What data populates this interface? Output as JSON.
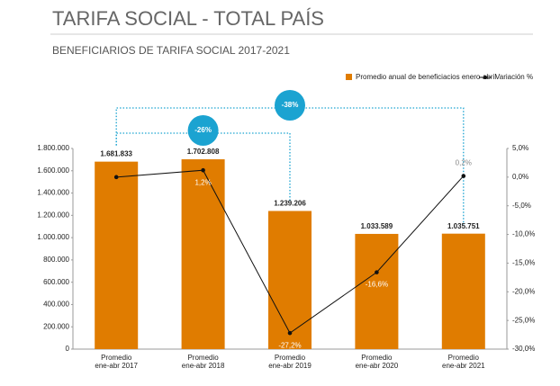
{
  "chart_data": {
    "type": "bar",
    "title": "TARIFA SOCIAL - TOTAL PAÍS",
    "subtitle": "BENEFICIARIOS DE TARIFA SOCIAL 2017-2021",
    "categories": [
      "Promedio\nene-abr 2017",
      "Promedio\nene-abr 2018",
      "Promedio\nene-abr 2019",
      "Promedio\nene-abr 2020",
      "Promedio\nene-abr 2021"
    ],
    "series": [
      {
        "name": "Promedio anual de beneficiacios enero-abril",
        "color": "#e07c00",
        "type": "bar",
        "values": [
          1681833,
          1702808,
          1239206,
          1033589,
          1035751
        ],
        "value_labels": [
          "1.681.833",
          "1.702.808",
          "1.239.206",
          "1.033.589",
          "1.035.751"
        ]
      },
      {
        "name": "Variación %",
        "color": "#111111",
        "type": "line",
        "axis": "y2",
        "values": [
          0.0,
          1.2,
          -27.2,
          -16.6,
          0.2
        ],
        "value_labels": [
          null,
          "1,2%",
          "-27,2%",
          "-16,6%",
          "0,2%"
        ]
      }
    ],
    "ylim": [
      0,
      1800000
    ],
    "yticks": [
      0,
      {
        "value": 200000,
        "label": "200.000"
      },
      {
        "value": 400000,
        "label": "400.000"
      },
      {
        "value": 600000,
        "label": "600.000"
      },
      {
        "value": 800000,
        "label": "800.000"
      },
      {
        "value": 1000000,
        "label": "1.000.000"
      },
      {
        "value": 1200000,
        "label": "1.200.000"
      },
      {
        "value": 1400000,
        "label": "1.400.000"
      },
      {
        "value": 1600000,
        "label": "1.600.000"
      },
      {
        "value": 1800000,
        "label": "1.800.000"
      }
    ],
    "y2lim": [
      -30,
      5
    ],
    "y2ticks": [
      {
        "value": 5,
        "label": "5,0%"
      },
      {
        "value": 0,
        "label": "0,0%"
      },
      {
        "value": -5,
        "label": "-5,0%"
      },
      {
        "value": -10,
        "label": "-10,0%"
      },
      {
        "value": -15,
        "label": "-15,0%"
      },
      {
        "value": -20,
        "label": "-20,0%"
      },
      {
        "value": -25,
        "label": "-25,0%"
      },
      {
        "value": -30,
        "label": "-30,0%"
      }
    ],
    "annotations": [
      {
        "text": "-26%",
        "color": "#1ba3d1"
      },
      {
        "text": "-38%",
        "color": "#1ba3d1"
      }
    ]
  }
}
